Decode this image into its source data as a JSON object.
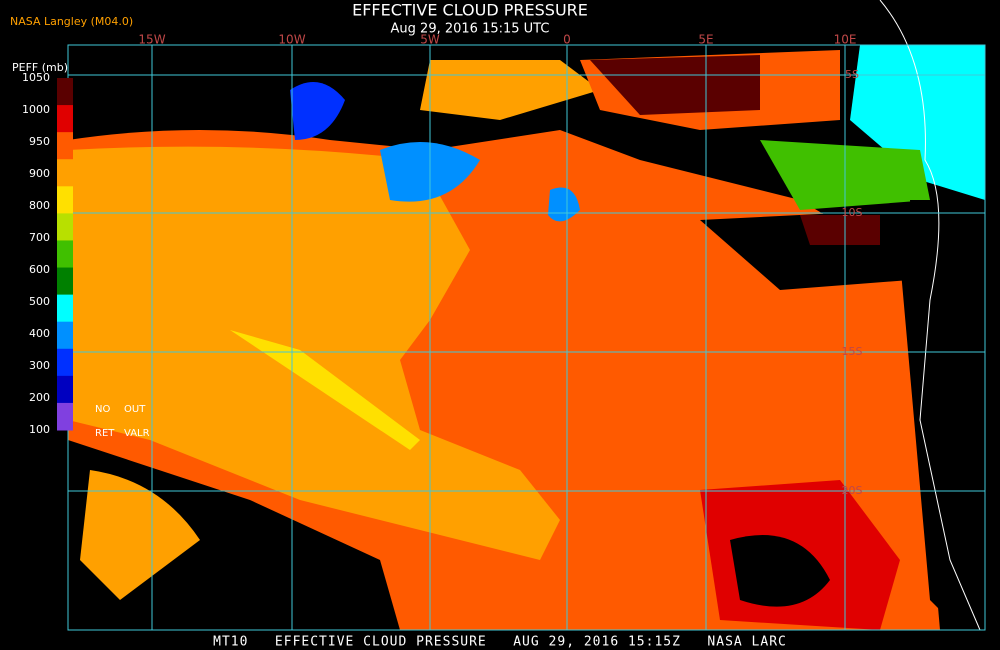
{
  "header": {
    "source": "NASA Langley (M04.0)",
    "title": "EFFECTIVE CLOUD PRESSURE",
    "subtitle": "Aug 29, 2016 15:15 UTC"
  },
  "legend": {
    "label": "PEFF (mb)",
    "ticks": [
      "1050",
      "1000",
      "950",
      "900",
      "800",
      "700",
      "600",
      "500",
      "400",
      "300",
      "200",
      "100"
    ],
    "colors": [
      "#5a0000",
      "#e00000",
      "#ff5a00",
      "#ffa000",
      "#ffe000",
      "#b8e000",
      "#40c000",
      "#008000",
      "#00ffff",
      "#0090ff",
      "#0030ff",
      "#0000c0",
      "#8040e0"
    ],
    "no_data": [
      "NO",
      "RET"
    ],
    "out_of_range": [
      "OUT",
      "VALR"
    ]
  },
  "longitudes": [
    "15W",
    "10W",
    "5W",
    "0",
    "5E",
    "10E"
  ],
  "latitudes": [
    "5S",
    "10S",
    "15S",
    "20S"
  ],
  "footer": "MT10   EFFECTIVE CLOUD PRESSURE   AUG 29, 2016 15:15Z   NASA LARC"
}
